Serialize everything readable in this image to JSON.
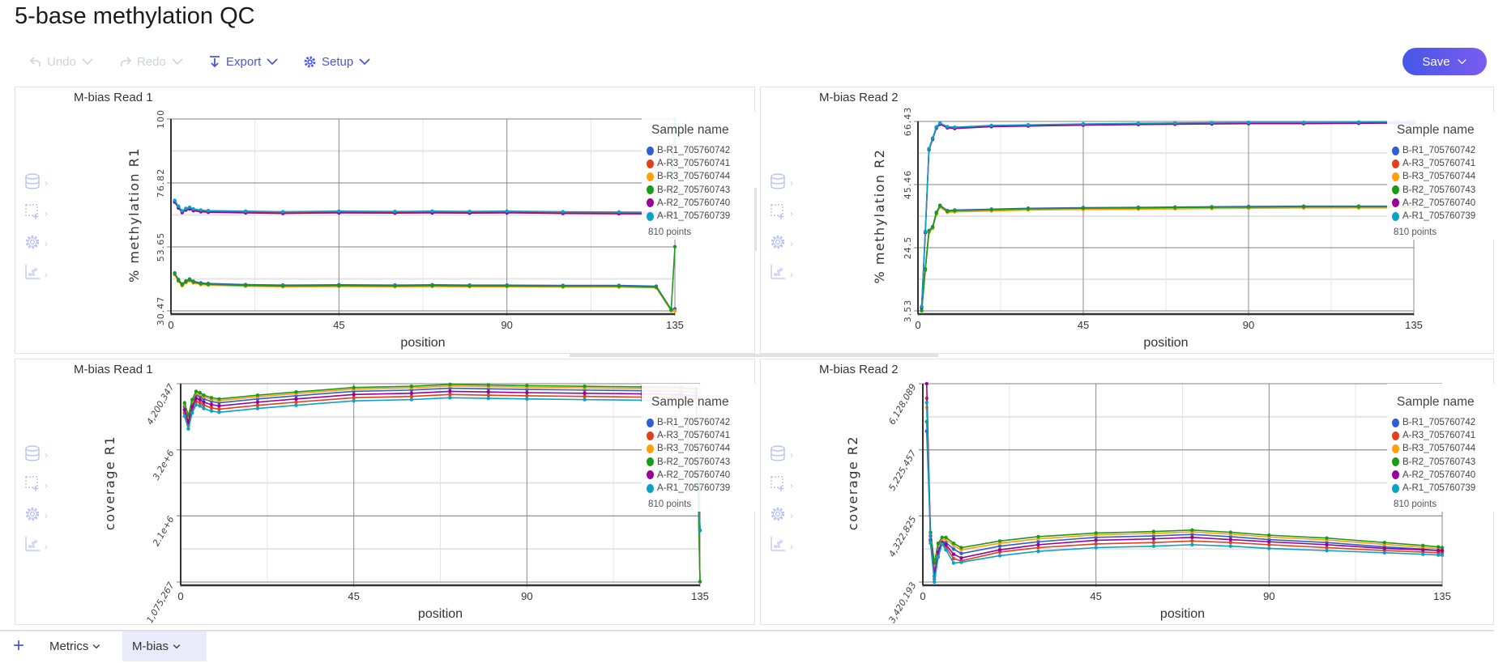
{
  "page_title": "5-base methylation QC",
  "toolbar": {
    "undo": "Undo",
    "redo": "Redo",
    "export": "Export",
    "setup": "Setup",
    "save": "Save"
  },
  "tabs": [
    {
      "label": "Metrics"
    },
    {
      "label": "M-bias",
      "active": true
    }
  ],
  "colors": {
    "accent": "#4a55d8",
    "save_gradient": [
      "#4656e6",
      "#7a5cf0"
    ],
    "sidebar_icon": "#b9c0f5"
  },
  "sidebar_icons": [
    "database-icon",
    "select-add-icon",
    "gear-icon",
    "scatter-chart-icon"
  ],
  "legend": {
    "title": "Sample name",
    "points": "810 points",
    "items": [
      {
        "label": "B-R1_705760742",
        "color": "#2f5fd0"
      },
      {
        "label": "A-R3_705760741",
        "color": "#e0401a"
      },
      {
        "label": "B-R3_705760744",
        "color": "#ff9d0a"
      },
      {
        "label": "B-R2_705760743",
        "color": "#1a9a1a"
      },
      {
        "label": "A-R2_705760740",
        "color": "#990099"
      },
      {
        "label": "A-R1_705760739",
        "color": "#0aa0c8"
      }
    ]
  },
  "chart_data": [
    {
      "type": "line",
      "title": "M-bias Read 1",
      "xlabel": "position",
      "ylabel": "% methylation R1",
      "xlim": [
        0,
        135
      ],
      "xticks": [
        "0",
        "45",
        "90",
        "135"
      ],
      "ylim": [
        30.47,
        100
      ],
      "yticks": [
        "30.47",
        "53.65",
        "76.82",
        "100"
      ],
      "grid": true,
      "legend": "top-right",
      "x": [
        1,
        2,
        3,
        4,
        5,
        6,
        8,
        10,
        20,
        30,
        45,
        60,
        70,
        80,
        90,
        105,
        120,
        130,
        134,
        135
      ],
      "series": [
        {
          "name": "B-R1_705760742",
          "values": [
            44.2,
            41.8,
            40.2,
            41.3,
            42.0,
            41.2,
            40.6,
            40.4,
            40.0,
            39.8,
            39.9,
            39.8,
            39.9,
            39.8,
            39.8,
            39.7,
            39.7,
            39.4,
            31.0,
            31.2
          ]
        },
        {
          "name": "A-R3_705760741",
          "values": [
            70.3,
            68.2,
            66.5,
            67.4,
            67.8,
            67.2,
            66.8,
            66.6,
            66.4,
            66.2,
            66.4,
            66.3,
            66.4,
            66.3,
            66.4,
            66.2,
            66.1,
            66.0,
            65.2,
            66.0
          ]
        },
        {
          "name": "B-R3_705760744",
          "values": [
            43.6,
            41.2,
            39.6,
            40.7,
            41.4,
            40.6,
            40.0,
            39.8,
            39.4,
            39.2,
            39.3,
            39.2,
            39.3,
            39.2,
            39.2,
            39.1,
            39.1,
            38.8,
            30.5,
            30.5
          ]
        },
        {
          "name": "B-R2_705760743",
          "values": [
            43.9,
            41.5,
            39.9,
            41.0,
            41.7,
            40.9,
            40.3,
            40.1,
            39.7,
            39.5,
            39.6,
            39.5,
            39.6,
            39.5,
            39.5,
            39.4,
            39.4,
            39.1,
            30.8,
            53.7
          ]
        },
        {
          "name": "A-R2_705760740",
          "values": [
            69.9,
            67.8,
            66.1,
            67.0,
            67.4,
            66.8,
            66.4,
            66.2,
            66.0,
            65.8,
            66.0,
            65.9,
            66.0,
            65.9,
            66.0,
            65.8,
            65.7,
            65.6,
            64.8,
            65.6
          ]
        },
        {
          "name": "A-R1_705760739",
          "values": [
            70.5,
            68.4,
            66.7,
            67.6,
            68.0,
            67.4,
            67.0,
            66.8,
            66.6,
            66.4,
            66.6,
            66.5,
            66.6,
            66.5,
            66.6,
            66.4,
            66.3,
            66.2,
            65.4,
            100
          ]
        }
      ]
    },
    {
      "type": "line",
      "title": "M-bias Read 2",
      "xlabel": "position",
      "ylabel": "% methylation R2",
      "xlim": [
        0,
        135
      ],
      "xticks": [
        "0",
        "45",
        "90",
        "135"
      ],
      "ylim": [
        3.53,
        66.43
      ],
      "yticks": [
        "3.53",
        "24.5",
        "45.46",
        "66.43"
      ],
      "grid": true,
      "legend": "top-right",
      "x": [
        1,
        2,
        3,
        4,
        5,
        6,
        8,
        10,
        20,
        30,
        45,
        60,
        70,
        80,
        90,
        105,
        120,
        130,
        134,
        135
      ],
      "series": [
        {
          "name": "B-R1_705760742",
          "values": [
            3.6,
            17.5,
            30.2,
            31.5,
            36.2,
            38.6,
            36.8,
            37.0,
            37.3,
            37.6,
            37.8,
            37.9,
            38.0,
            38.1,
            38.2,
            38.3,
            38.3,
            38.3,
            38.3,
            38.3
          ]
        },
        {
          "name": "A-R3_705760741",
          "values": [
            4.9,
            29.8,
            57.3,
            60.8,
            64.5,
            65.8,
            64.6,
            64.4,
            65.0,
            65.2,
            65.5,
            65.7,
            65.8,
            65.9,
            66.0,
            66.0,
            66.1,
            66.2,
            66.2,
            66.2
          ]
        },
        {
          "name": "B-R3_705760744",
          "values": [
            3.6,
            16.9,
            29.6,
            30.9,
            35.6,
            38.0,
            36.2,
            36.4,
            36.7,
            37.0,
            37.2,
            37.3,
            37.4,
            37.5,
            37.6,
            37.7,
            37.7,
            37.7,
            37.7,
            37.7
          ]
        },
        {
          "name": "B-R2_705760743",
          "values": [
            3.6,
            17.3,
            30.0,
            31.3,
            36.0,
            38.4,
            36.6,
            36.8,
            37.1,
            37.4,
            37.6,
            37.7,
            37.8,
            37.9,
            38.0,
            38.1,
            38.1,
            38.1,
            38.1,
            38.1
          ]
        },
        {
          "name": "A-R2_705760740",
          "values": [
            4.6,
            29.5,
            57.0,
            60.5,
            64.2,
            65.5,
            64.3,
            64.1,
            64.7,
            64.9,
            65.2,
            65.4,
            65.5,
            65.6,
            65.7,
            65.7,
            65.8,
            65.9,
            65.9,
            65.9
          ]
        },
        {
          "name": "A-R1_705760739",
          "values": [
            5.0,
            29.9,
            57.4,
            60.9,
            64.6,
            65.9,
            64.7,
            64.5,
            65.1,
            65.3,
            65.6,
            65.8,
            65.9,
            66.0,
            66.1,
            66.1,
            66.2,
            66.3,
            66.3,
            66.3
          ]
        }
      ]
    },
    {
      "type": "line",
      "title": "M-bias Read 1",
      "xlabel": "position",
      "ylabel": "coverage R1",
      "xlim": [
        0,
        135
      ],
      "xticks": [
        "0",
        "45",
        "90",
        "135"
      ],
      "ylim": [
        1075267,
        4200347
      ],
      "yticks": [
        "1,075,267",
        "2.1e+6",
        "3.2e+6",
        "4,200,347"
      ],
      "grid": true,
      "legend": "top-right",
      "x": [
        1,
        2,
        3,
        4,
        5,
        6,
        8,
        10,
        20,
        30,
        45,
        60,
        70,
        80,
        90,
        105,
        120,
        130,
        134,
        135
      ],
      "series": [
        {
          "name": "B-R1_705760742",
          "values": [
            3840000,
            3640000,
            3890000,
            4020000,
            4000000,
            3960000,
            3920000,
            3900000,
            3960000,
            4010000,
            4080000,
            4100000,
            4130000,
            4120000,
            4110000,
            4100000,
            4090000,
            4080000,
            4060000,
            1080000
          ]
        },
        {
          "name": "A-R3_705760741",
          "values": [
            3740000,
            3540000,
            3790000,
            3920000,
            3900000,
            3860000,
            3820000,
            3800000,
            3860000,
            3910000,
            3980000,
            4000000,
            4030000,
            4020000,
            4010000,
            4000000,
            3990000,
            3980000,
            3960000,
            1890000
          ]
        },
        {
          "name": "B-R3_705760744",
          "values": [
            3875000,
            3675000,
            3925000,
            4055000,
            4035000,
            3995000,
            3955000,
            3935000,
            3995000,
            4045000,
            4115000,
            4135000,
            4165000,
            4155000,
            4145000,
            4135000,
            4125000,
            4115000,
            4095000,
            1080000
          ]
        },
        {
          "name": "B-R2_705760743",
          "values": [
            3900000,
            3700000,
            3950000,
            4080000,
            4060000,
            4020000,
            3980000,
            3960000,
            4020000,
            4070000,
            4140000,
            4160000,
            4190000,
            4180000,
            4170000,
            4160000,
            4150000,
            4140000,
            4120000,
            1080000
          ]
        },
        {
          "name": "A-R2_705760740",
          "values": [
            3790000,
            3590000,
            3840000,
            3970000,
            3950000,
            3910000,
            3870000,
            3850000,
            3910000,
            3960000,
            4030000,
            4050000,
            4080000,
            4070000,
            4060000,
            4050000,
            4040000,
            4030000,
            4010000,
            1890000
          ]
        },
        {
          "name": "A-R1_705760739",
          "values": [
            3690000,
            3490000,
            3740000,
            3870000,
            3850000,
            3810000,
            3770000,
            3750000,
            3810000,
            3860000,
            3930000,
            3950000,
            3980000,
            3970000,
            3960000,
            3950000,
            3940000,
            3930000,
            3910000,
            1890000
          ]
        }
      ]
    },
    {
      "type": "line",
      "title": "M-bias Read 2",
      "xlabel": "position",
      "ylabel": "coverage R2",
      "xlim": [
        0,
        135
      ],
      "xticks": [
        "0",
        "45",
        "90",
        "135"
      ],
      "ylim": [
        3420193,
        6128089
      ],
      "yticks": [
        "3,420,193",
        "4,322,825",
        "5,225,457",
        "6,128,089"
      ],
      "grid": true,
      "legend": "top-right",
      "x": [
        1,
        2,
        3,
        4,
        5,
        6,
        8,
        10,
        20,
        30,
        45,
        60,
        70,
        80,
        90,
        105,
        120,
        130,
        134,
        135
      ],
      "series": [
        {
          "name": "B-R1_705760742",
          "values": [
            5480000,
            4050000,
            3600000,
            3880000,
            3970000,
            3960000,
            3870000,
            3810000,
            3910000,
            3970000,
            4030000,
            4050000,
            4070000,
            4040000,
            4000000,
            3960000,
            3900000,
            3870000,
            3850000,
            3840000
          ]
        },
        {
          "name": "A-R3_705760741",
          "values": [
            5930000,
            3980000,
            3460000,
            3800000,
            3950000,
            3900000,
            3740000,
            3710000,
            3830000,
            3890000,
            3940000,
            3960000,
            3980000,
            3960000,
            3930000,
            3890000,
            3850000,
            3830000,
            3820000,
            3820000
          ]
        },
        {
          "name": "B-R3_705760744",
          "values": [
            5800000,
            4080000,
            3650000,
            3920000,
            4000000,
            4000000,
            3920000,
            3860000,
            3950000,
            4010000,
            4065000,
            4085000,
            4105000,
            4075000,
            4035000,
            3995000,
            3935000,
            3895000,
            3875000,
            3865000
          ]
        },
        {
          "name": "B-R2_705760743",
          "values": [
            5610000,
            4100000,
            3680000,
            3950000,
            4030000,
            4030000,
            3950000,
            3890000,
            3980000,
            4040000,
            4090000,
            4110000,
            4130000,
            4100000,
            4060000,
            4020000,
            3960000,
            3920000,
            3900000,
            3890000
          ]
        },
        {
          "name": "A-R2_705760740",
          "values": [
            6128089,
            4000000,
            3500000,
            3830000,
            3960000,
            3930000,
            3800000,
            3750000,
            3860000,
            3930000,
            3990000,
            4010000,
            4030000,
            4000000,
            3970000,
            3930000,
            3880000,
            3860000,
            3850000,
            3850000
          ]
        },
        {
          "name": "A-R1_705760739",
          "values": [
            5870000,
            3950000,
            3420193,
            3760000,
            3940000,
            3860000,
            3680000,
            3690000,
            3780000,
            3840000,
            3890000,
            3910000,
            3930000,
            3910000,
            3880000,
            3850000,
            3820000,
            3800000,
            3790000,
            3790000
          ]
        }
      ]
    }
  ]
}
